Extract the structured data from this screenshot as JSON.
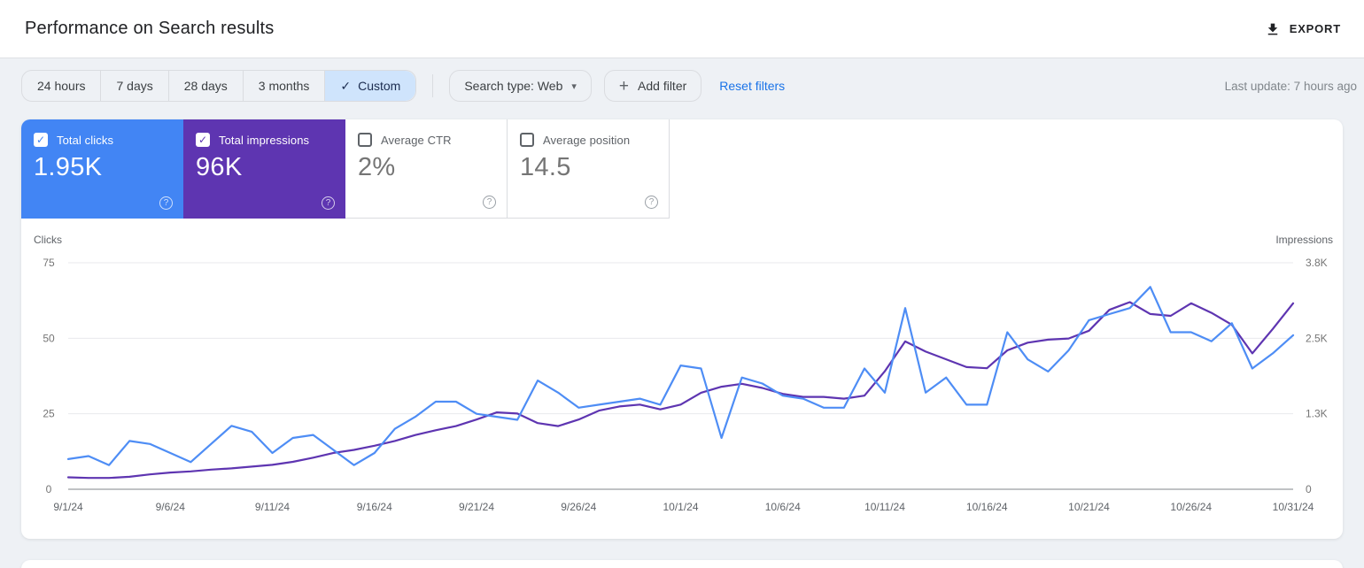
{
  "header": {
    "title": "Performance on Search results",
    "export_label": "EXPORT"
  },
  "toolbar": {
    "date_ranges": [
      "24 hours",
      "7 days",
      "28 days",
      "3 months",
      "Custom"
    ],
    "selected_range": "Custom",
    "check_glyph": "✓",
    "search_type_label": "Search type: Web",
    "add_filter_label": "Add filter",
    "reset_label": "Reset filters",
    "last_update": "Last update: 7 hours ago"
  },
  "metrics": [
    {
      "label": "Total clicks",
      "value": "1.95K",
      "checked": true,
      "color": "#4285f4"
    },
    {
      "label": "Total impressions",
      "value": "96K",
      "checked": true,
      "color": "#5e35b1"
    },
    {
      "label": "Average CTR",
      "value": "2%",
      "checked": false,
      "color": null
    },
    {
      "label": "Average position",
      "value": "14.5",
      "checked": false,
      "color": null
    }
  ],
  "chart_data": {
    "type": "line",
    "grid": "horizontal",
    "x_dates": [
      "9/1/24",
      "9/2/24",
      "9/3/24",
      "9/4/24",
      "9/5/24",
      "9/6/24",
      "9/7/24",
      "9/8/24",
      "9/9/24",
      "9/10/24",
      "9/11/24",
      "9/12/24",
      "9/13/24",
      "9/14/24",
      "9/15/24",
      "9/16/24",
      "9/17/24",
      "9/18/24",
      "9/19/24",
      "9/20/24",
      "9/21/24",
      "9/22/24",
      "9/23/24",
      "9/24/24",
      "9/25/24",
      "9/26/24",
      "9/27/24",
      "9/28/24",
      "9/29/24",
      "9/30/24",
      "10/1/24",
      "10/2/24",
      "10/3/24",
      "10/4/24",
      "10/5/24",
      "10/6/24",
      "10/7/24",
      "10/8/24",
      "10/9/24",
      "10/10/24",
      "10/11/24",
      "10/12/24",
      "10/13/24",
      "10/14/24",
      "10/15/24",
      "10/16/24",
      "10/17/24",
      "10/18/24",
      "10/19/24",
      "10/20/24",
      "10/21/24",
      "10/22/24",
      "10/23/24",
      "10/24/24",
      "10/25/24",
      "10/26/24",
      "10/27/24",
      "10/28/24",
      "10/29/24",
      "10/30/24",
      "10/31/24"
    ],
    "x_tick_labels": [
      "9/1/24",
      "9/6/24",
      "9/11/24",
      "9/16/24",
      "9/21/24",
      "9/26/24",
      "10/1/24",
      "10/6/24",
      "10/11/24",
      "10/16/24",
      "10/21/24",
      "10/26/24",
      "10/31/24"
    ],
    "left_axis": {
      "label": "Clicks",
      "ticks": [
        75,
        50,
        25,
        0
      ],
      "max": 75
    },
    "right_axis": {
      "label": "Impressions",
      "tick_labels": [
        "3.8K",
        "2.5K",
        "1.3K",
        "0"
      ],
      "max": 3800
    },
    "series": [
      {
        "name": "Clicks",
        "axis": "left",
        "color": "#4e8df5",
        "values": [
          10,
          11,
          8,
          16,
          15,
          12,
          9,
          15,
          21,
          19,
          12,
          17,
          18,
          13,
          8,
          12,
          20,
          24,
          29,
          29,
          25,
          24,
          23,
          36,
          32,
          27,
          28,
          29,
          30,
          28,
          41,
          40,
          17,
          37,
          35,
          31,
          30,
          27,
          27,
          40,
          32,
          60,
          32,
          37,
          28,
          28,
          52,
          43,
          39,
          46,
          56,
          58,
          60,
          67,
          52,
          52,
          49,
          55,
          40,
          45,
          51
        ]
      },
      {
        "name": "Impressions",
        "axis": "right",
        "color": "#5e35b1",
        "values": [
          200,
          190,
          190,
          210,
          250,
          280,
          300,
          330,
          350,
          380,
          410,
          460,
          530,
          610,
          660,
          730,
          810,
          910,
          990,
          1060,
          1170,
          1290,
          1270,
          1110,
          1060,
          1170,
          1320,
          1390,
          1420,
          1340,
          1420,
          1620,
          1720,
          1770,
          1700,
          1600,
          1550,
          1550,
          1520,
          1570,
          1980,
          2480,
          2310,
          2180,
          2050,
          2030,
          2330,
          2460,
          2510,
          2530,
          2660,
          3010,
          3140,
          2940,
          2910,
          3120,
          2960,
          2760,
          2280,
          2690,
          3120
        ]
      }
    ]
  }
}
